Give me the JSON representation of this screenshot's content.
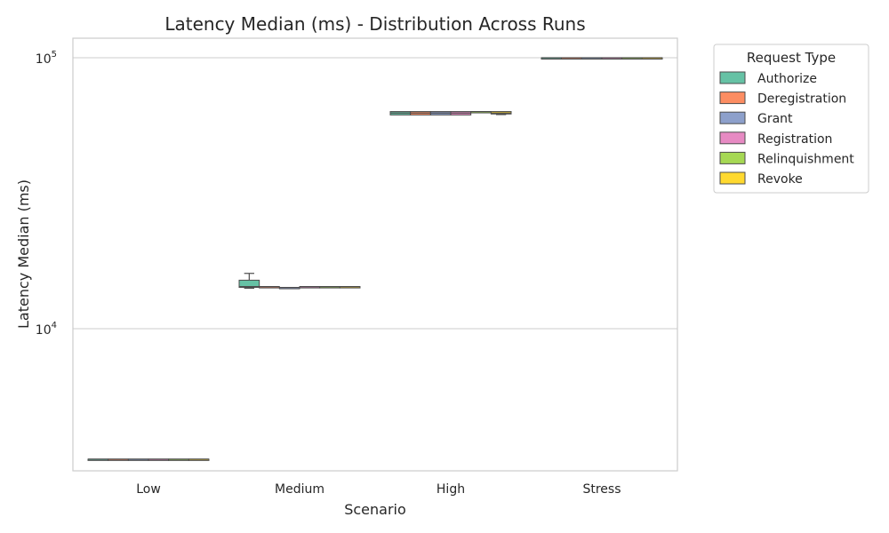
{
  "chart_data": {
    "type": "box",
    "title": "Latency Median (ms) - Distribution Across Runs",
    "xlabel": "Scenario",
    "ylabel": "Latency Median (ms)",
    "yscale": "log",
    "ylim": [
      3000,
      120000
    ],
    "yticks": [
      {
        "value": 10000,
        "base": "10",
        "exp": "4"
      },
      {
        "value": 100000,
        "base": "10",
        "exp": "5"
      }
    ],
    "grid": "horizontal",
    "categories": [
      "Low",
      "Medium",
      "High",
      "Stress"
    ],
    "legend": {
      "title": "Request Type",
      "placement": "outside-top-right"
    },
    "series": [
      {
        "name": "Authorize",
        "color": "#66c2a5",
        "boxes": [
          {
            "q1": 3300,
            "median": 3300,
            "q3": 3300,
            "whislo": 3300,
            "whishi": 3300
          },
          {
            "q1": 14200,
            "median": 14300,
            "q3": 15100,
            "whislo": 14100,
            "whishi": 16000
          },
          {
            "q1": 61500,
            "median": 62500,
            "q3": 63300,
            "whislo": 61500,
            "whishi": 63300
          },
          {
            "q1": 100000,
            "median": 100000,
            "q3": 100000,
            "whislo": 100000,
            "whishi": 100000
          }
        ]
      },
      {
        "name": "Deregistration",
        "color": "#fc8d62",
        "boxes": [
          {
            "q1": 3300,
            "median": 3300,
            "q3": 3300,
            "whislo": 3300,
            "whishi": 3300
          },
          {
            "q1": 14300,
            "median": 14300,
            "q3": 14300,
            "whislo": 14300,
            "whishi": 14300
          },
          {
            "q1": 61500,
            "median": 62500,
            "q3": 63300,
            "whislo": 61500,
            "whishi": 63300
          },
          {
            "q1": 100000,
            "median": 100000,
            "q3": 100000,
            "whislo": 100000,
            "whishi": 100000
          }
        ]
      },
      {
        "name": "Grant",
        "color": "#8da0cb",
        "boxes": [
          {
            "q1": 3300,
            "median": 3300,
            "q3": 3300,
            "whislo": 3300,
            "whishi": 3300
          },
          {
            "q1": 14200,
            "median": 14200,
            "q3": 14200,
            "whislo": 14100,
            "whishi": 14200
          },
          {
            "q1": 61500,
            "median": 62500,
            "q3": 63300,
            "whislo": 61500,
            "whishi": 63300
          },
          {
            "q1": 100000,
            "median": 100000,
            "q3": 100000,
            "whislo": 100000,
            "whishi": 100000
          }
        ]
      },
      {
        "name": "Registration",
        "color": "#e78ac3",
        "boxes": [
          {
            "q1": 3300,
            "median": 3300,
            "q3": 3300,
            "whislo": 3300,
            "whishi": 3300
          },
          {
            "q1": 14300,
            "median": 14300,
            "q3": 14300,
            "whislo": 14300,
            "whishi": 14300
          },
          {
            "q1": 61500,
            "median": 62500,
            "q3": 63300,
            "whislo": 61500,
            "whishi": 63300
          },
          {
            "q1": 100000,
            "median": 100000,
            "q3": 100000,
            "whislo": 100000,
            "whishi": 100000
          }
        ]
      },
      {
        "name": "Relinquishment",
        "color": "#a6d854",
        "boxes": [
          {
            "q1": 3300,
            "median": 3300,
            "q3": 3300,
            "whislo": 3300,
            "whishi": 3300
          },
          {
            "q1": 14300,
            "median": 14300,
            "q3": 14300,
            "whislo": 14300,
            "whishi": 14300
          },
          {
            "q1": 63300,
            "median": 63300,
            "q3": 63300,
            "whislo": 63300,
            "whishi": 63300
          },
          {
            "q1": 100000,
            "median": 100000,
            "q3": 100000,
            "whislo": 100000,
            "whishi": 100000
          }
        ]
      },
      {
        "name": "Revoke",
        "color": "#ffd92f",
        "boxes": [
          {
            "q1": 3300,
            "median": 3300,
            "q3": 3300,
            "whislo": 3300,
            "whishi": 3300
          },
          {
            "q1": 14300,
            "median": 14300,
            "q3": 14300,
            "whislo": 14300,
            "whishi": 14300
          },
          {
            "q1": 62000,
            "median": 62500,
            "q3": 63300,
            "whislo": 61700,
            "whishi": 63300
          },
          {
            "q1": 100000,
            "median": 100000,
            "q3": 100000,
            "whislo": 100000,
            "whishi": 100000
          }
        ]
      }
    ]
  }
}
